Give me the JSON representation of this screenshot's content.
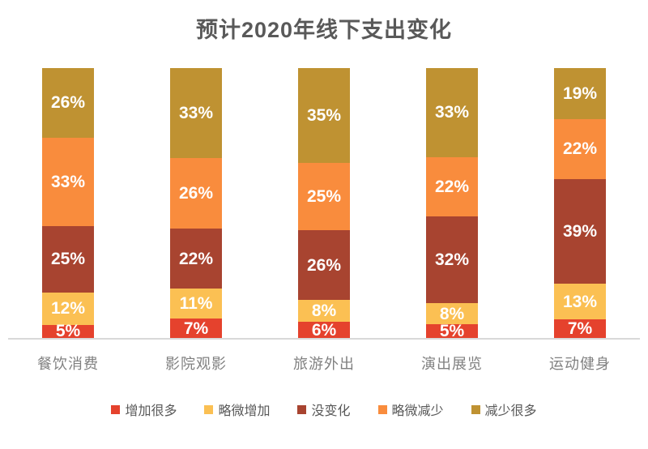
{
  "title": "预计2020年线下支出变化",
  "chart_data": {
    "type": "bar",
    "stacked": true,
    "orientation": "vertical",
    "normalized_percent": true,
    "value_suffix": "%",
    "legend_position": "bottom",
    "grid": false,
    "categories": [
      "餐饮消费",
      "影院观影",
      "旅游外出",
      "演出展览",
      "运动健身"
    ],
    "series": [
      {
        "name": "增加很多",
        "color": "#E5422D",
        "values": [
          5,
          7,
          6,
          5,
          7
        ]
      },
      {
        "name": "略微增加",
        "color": "#FBC053",
        "values": [
          12,
          11,
          8,
          8,
          13
        ]
      },
      {
        "name": "没变化",
        "color": "#A84430",
        "values": [
          25,
          22,
          26,
          32,
          39
        ]
      },
      {
        "name": "略微减少",
        "color": "#F98C3D",
        "values": [
          33,
          26,
          25,
          22,
          22
        ]
      },
      {
        "name": "减少很多",
        "color": "#BF9232",
        "values": [
          26,
          33,
          35,
          33,
          19
        ]
      }
    ]
  },
  "colors": {
    "background": "#FFFFFF",
    "title_text": "#595959",
    "category_label_text": "#808080",
    "legend_text": "#595959",
    "axis_line": "#D9D9D9",
    "bar_value_label_text": "#FFFFFF"
  }
}
